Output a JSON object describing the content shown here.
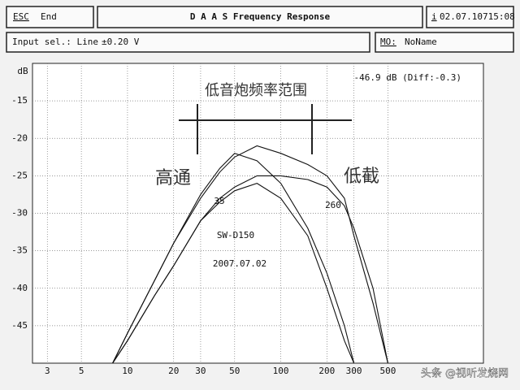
{
  "header": {
    "esc": "ESC",
    "esc_action": "End",
    "title": "D A A S   Frequency Response",
    "info": "i",
    "datetime": "02.07.10715:08",
    "input": "Input sel.: Line",
    "range": "±0.20 V",
    "memory_label": "MO:",
    "memory": "NoName"
  },
  "chart_data": {
    "type": "line",
    "y_label": "dB",
    "readout": "-46.9 dB (Diff:-0.3)",
    "annotations": {
      "range": "低音炮频率范围",
      "highpass": "高通",
      "lowcut": "低截",
      "f_low": "35",
      "f_high": "260",
      "model": "SW-D150",
      "date": "2007.07.02"
    },
    "watermark": "头条 @视听发烧网",
    "log_x": true,
    "grid": true,
    "xlim": [
      2.4,
      2100
    ],
    "xticks": [
      3,
      5,
      10,
      20,
      30,
      50,
      100,
      200,
      300,
      500
    ],
    "ylim": [
      -50,
      -10
    ],
    "yticks": [
      -45,
      -40,
      -35,
      -30,
      -25,
      -20,
      -15
    ],
    "x": [
      8,
      10,
      15,
      20,
      30,
      40,
      50,
      70,
      100,
      150,
      200,
      260,
      300,
      400,
      500
    ],
    "series": [
      {
        "color": "#111111",
        "values": [
          -50,
          -46,
          -39,
          -34,
          -28,
          -24.5,
          -22.5,
          -21,
          -22,
          -23.5,
          -25,
          -28,
          -33,
          -42,
          -50
        ]
      },
      {
        "color": "#111111",
        "values": [
          -50,
          -46,
          -39,
          -34,
          -27.5,
          -24,
          -22,
          -23,
          -26,
          -32,
          -38,
          -45,
          -50,
          null,
          null
        ]
      },
      {
        "color": "#111111",
        "values": [
          -50,
          -47,
          -41,
          -37,
          -31,
          -28,
          -26.5,
          -25,
          -25,
          -25.5,
          -26.5,
          -29,
          -32,
          -40,
          -50
        ]
      },
      {
        "color": "#111111",
        "values": [
          -50,
          -47,
          -41,
          -37,
          -31,
          -28.5,
          -27,
          -26,
          -28,
          -33,
          -40,
          -47,
          -50,
          null,
          null
        ]
      }
    ]
  }
}
